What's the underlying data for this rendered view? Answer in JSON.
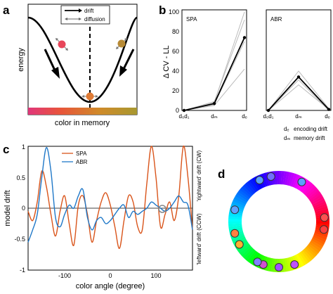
{
  "panels": {
    "a": {
      "label": "a",
      "legend": {
        "drift": "drift",
        "diffusion": "diffusion"
      },
      "ylabel": "energy",
      "xlabel": "color in memory"
    },
    "b": {
      "label": "b",
      "ylabel": "Δ CV - LL",
      "yticks": [
        "0",
        "20",
        "40",
        "60",
        "80",
        "100"
      ],
      "subplots": [
        {
          "title": "SPA",
          "xticks": [
            "d₀d₁",
            "dₘ",
            "dₑ"
          ]
        },
        {
          "title": "ABR",
          "xticks": [
            "d₀d₁",
            "dₘ",
            "dₑ"
          ]
        }
      ],
      "legend": [
        {
          "key": "dₑ",
          "text": "encoding drift"
        },
        {
          "key": "dₘ",
          "text": "memory drift"
        }
      ]
    },
    "c": {
      "label": "c",
      "ylabel": "model drift",
      "xlabel": "color angle (degree)",
      "xticks": [
        "-100",
        "0",
        "100"
      ],
      "yticks": [
        "1",
        "0.5",
        "0",
        "-0.5",
        "-1"
      ],
      "right_top": "'rightward' drift (CW)",
      "right_bottom": "'leftward' drift (CCW)",
      "legend": [
        {
          "name": "SPA",
          "color": "#d9541a"
        },
        {
          "name": "ABR",
          "color": "#1f78c8"
        }
      ]
    },
    "d": {
      "label": "d"
    }
  },
  "chart_data": [
    {
      "type": "line",
      "panel": "b-SPA",
      "title": "SPA",
      "categories": [
        "d₀d₁",
        "dₘ",
        "dₑ"
      ],
      "ylim": [
        0,
        100
      ],
      "series": [
        {
          "values": [
            0,
            7,
            74
          ],
          "role": "mean"
        },
        {
          "values": [
            0,
            8,
            100
          ],
          "role": "individual"
        },
        {
          "values": [
            0,
            6,
            70
          ],
          "role": "individual"
        },
        {
          "values": [
            0,
            5,
            42
          ],
          "role": "individual"
        },
        {
          "values": [
            0,
            9,
            92
          ],
          "role": "individual"
        }
      ]
    },
    {
      "type": "line",
      "panel": "b-ABR",
      "title": "ABR",
      "categories": [
        "d₀d₁",
        "dₘ",
        "dₑ"
      ],
      "ylim": [
        0,
        100
      ],
      "series": [
        {
          "values": [
            0,
            34,
            1
          ],
          "role": "mean"
        },
        {
          "values": [
            0,
            40,
            2
          ],
          "role": "individual"
        },
        {
          "values": [
            0,
            26,
            1
          ],
          "role": "individual"
        },
        {
          "values": [
            0,
            31,
            0
          ],
          "role": "individual"
        }
      ]
    },
    {
      "type": "line",
      "panel": "c",
      "xlabel": "color angle (degree)",
      "ylabel": "model drift",
      "xlim": [
        -180,
        180
      ],
      "ylim": [
        -1,
        1
      ],
      "series": [
        {
          "name": "SPA",
          "color": "#d9541a",
          "x": [
            -180,
            -170,
            -160,
            -150,
            -140,
            -130,
            -120,
            -110,
            -100,
            -90,
            -80,
            -70,
            -60,
            -50,
            -40,
            -30,
            -20,
            -10,
            0,
            10,
            20,
            30,
            40,
            50,
            60,
            70,
            80,
            90,
            100,
            110,
            120,
            130,
            140,
            150,
            160,
            170,
            180
          ],
          "y": [
            -0.05,
            -0.2,
            0.1,
            0.6,
            0.35,
            -0.1,
            -0.45,
            -0.05,
            0.2,
            -0.25,
            -0.6,
            0.05,
            0.2,
            -0.1,
            -0.55,
            -0.2,
            0.1,
            0.25,
            0.05,
            -0.3,
            -0.65,
            -0.2,
            0.2,
            0.1,
            -0.3,
            -0.35,
            0.4,
            1.0,
            0.5,
            -0.3,
            -0.1,
            0.1,
            -0.2,
            0.2,
            1.0,
            0.5,
            -0.35
          ]
        },
        {
          "name": "ABR",
          "color": "#1f78c8",
          "x": [
            -180,
            -170,
            -160,
            -150,
            -140,
            -130,
            -120,
            -110,
            -100,
            -90,
            -80,
            -70,
            -60,
            -50,
            -40,
            -30,
            -20,
            -10,
            0,
            10,
            20,
            30,
            40,
            50,
            60,
            70,
            80,
            90,
            100,
            110,
            120,
            130,
            140,
            150,
            160,
            170,
            180
          ],
          "y": [
            -0.55,
            -0.35,
            -0.1,
            0.5,
            0.98,
            0.6,
            -0.15,
            -0.3,
            -0.1,
            0.05,
            0.0,
            0.2,
            0.3,
            -0.15,
            -0.35,
            -0.2,
            -0.15,
            -0.25,
            -0.2,
            -0.1,
            0.0,
            0.05,
            -0.15,
            -0.05,
            -0.1,
            -0.05,
            0.0,
            0.1,
            0.05,
            0.0,
            -0.05,
            0.0,
            0.1,
            0.2,
            0.1,
            0.05,
            -0.35
          ]
        }
      ]
    }
  ]
}
